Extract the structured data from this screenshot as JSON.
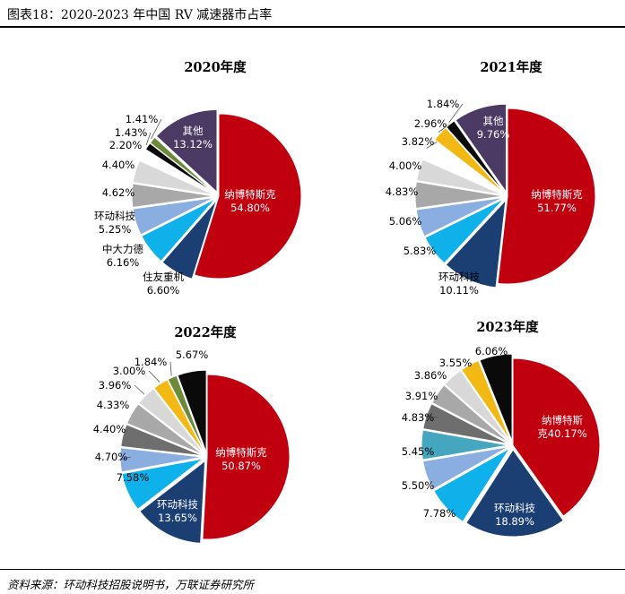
{
  "header": {
    "figure_title": "图表18：2020-2023 年中国  RV  减速器市占率"
  },
  "footer": {
    "source": "资料来源：环动科技招股说明书，万联证券研究所"
  },
  "colors": {
    "red": "#c1000f",
    "navy": "#1b3f73",
    "cyan": "#0fb1ea",
    "lightblue": "#8aaee0",
    "grey": "#a8a8a8",
    "darkgrey": "#6e6e6e",
    "lightgrey": "#d8d8d8",
    "black": "#0a0a0a",
    "green": "#6b8b3a",
    "yellow": "#f2b915",
    "purple": "#4b3a63",
    "teal": "#45a6c0"
  },
  "chart_data": [
    {
      "type": "pie",
      "title": "2020年度",
      "slices": [
        {
          "label": "纳博特斯克",
          "value": 54.8,
          "value_text": "54.80%",
          "color": "#c1000f"
        },
        {
          "label": "住友重机",
          "value": 6.6,
          "value_text": "6.60%",
          "color": "#1b3f73"
        },
        {
          "label": "中大力德",
          "value": 6.16,
          "value_text": "6.16%",
          "color": "#0fb1ea"
        },
        {
          "label": "环动科技",
          "value": 5.25,
          "value_text": "5.25%",
          "color": "#8aaee0"
        },
        {
          "label": "",
          "value": 4.62,
          "value_text": "4.62%",
          "color": "#a8a8a8"
        },
        {
          "label": "",
          "value": 4.4,
          "value_text": "4.40%",
          "color": "#d8d8d8"
        },
        {
          "label": "",
          "value": 2.2,
          "value_text": "2.20%",
          "color": "#ffffff"
        },
        {
          "label": "",
          "value": 1.43,
          "value_text": "1.43%",
          "color": "#0a0a0a"
        },
        {
          "label": "",
          "value": 1.41,
          "value_text": "1.41%",
          "color": "#6b8b3a"
        },
        {
          "label": "其他",
          "value": 13.12,
          "value_text": "13.12%",
          "color": "#4b3a63"
        }
      ]
    },
    {
      "type": "pie",
      "title": "2021年度",
      "slices": [
        {
          "label": "纳博特斯克",
          "value": 51.77,
          "value_text": "51.77%",
          "color": "#c1000f"
        },
        {
          "label": "环动科技",
          "value": 10.11,
          "value_text": "10.11%",
          "color": "#1b3f73"
        },
        {
          "label": "",
          "value": 5.83,
          "value_text": "5.83%",
          "color": "#0fb1ea"
        },
        {
          "label": "",
          "value": 5.06,
          "value_text": "5.06%",
          "color": "#8aaee0"
        },
        {
          "label": "",
          "value": 4.83,
          "value_text": "4.83%",
          "color": "#a8a8a8"
        },
        {
          "label": "",
          "value": 4.0,
          "value_text": "4.00%",
          "color": "#d8d8d8"
        },
        {
          "label": "",
          "value": 3.82,
          "value_text": "3.82%",
          "color": "#ffffff"
        },
        {
          "label": "",
          "value": 2.96,
          "value_text": "2.96%",
          "color": "#f2b915"
        },
        {
          "label": "",
          "value": 1.84,
          "value_text": "1.84%",
          "color": "#0a0a0a"
        },
        {
          "label": "其他",
          "value": 9.76,
          "value_text": "9.76%",
          "color": "#4b3a63"
        }
      ]
    },
    {
      "type": "pie",
      "title": "2022年度",
      "slices": [
        {
          "label": "纳博特斯克",
          "value": 50.87,
          "value_text": "50.87%",
          "color": "#c1000f"
        },
        {
          "label": "环动科技",
          "value": 13.65,
          "value_text": "13.65%",
          "color": "#1b3f73"
        },
        {
          "label": "",
          "value": 7.58,
          "value_text": "7.58%",
          "color": "#0fb1ea"
        },
        {
          "label": "",
          "value": 4.7,
          "value_text": "4.70%",
          "color": "#8aaee0"
        },
        {
          "label": "",
          "value": 4.4,
          "value_text": "4.40%",
          "color": "#6e6e6e"
        },
        {
          "label": "",
          "value": 4.33,
          "value_text": "4.33%",
          "color": "#a8a8a8"
        },
        {
          "label": "",
          "value": 3.96,
          "value_text": "3.96%",
          "color": "#d8d8d8"
        },
        {
          "label": "",
          "value": 3.0,
          "value_text": "3.00%",
          "color": "#f2b915"
        },
        {
          "label": "",
          "value": 1.84,
          "value_text": "1.84%",
          "color": "#6b8b3a"
        },
        {
          "label": "",
          "value": 5.67,
          "value_text": "5.67%",
          "color": "#0a0a0a"
        }
      ]
    },
    {
      "type": "pie",
      "title": "2023年度",
      "slices": [
        {
          "label": "纳博特斯\n克",
          "value": 40.17,
          "value_text": "40.17%",
          "color": "#c1000f"
        },
        {
          "label": "环动科技",
          "value": 18.89,
          "value_text": "18.89%",
          "color": "#1b3f73"
        },
        {
          "label": "",
          "value": 7.78,
          "value_text": "7.78%",
          "color": "#0fb1ea"
        },
        {
          "label": "",
          "value": 5.5,
          "value_text": "5.50%",
          "color": "#8aaee0"
        },
        {
          "label": "",
          "value": 5.45,
          "value_text": "5.45%",
          "color": "#45a6c0"
        },
        {
          "label": "",
          "value": 4.83,
          "value_text": "4.83%",
          "color": "#6e6e6e"
        },
        {
          "label": "",
          "value": 3.91,
          "value_text": "3.91%",
          "color": "#a8a8a8"
        },
        {
          "label": "",
          "value": 3.86,
          "value_text": "3.86%",
          "color": "#d8d8d8"
        },
        {
          "label": "",
          "value": 3.55,
          "value_text": "3.55%",
          "color": "#f2b915"
        },
        {
          "label": "",
          "value": 6.06,
          "value_text": "6.06%",
          "color": "#0a0a0a"
        }
      ]
    }
  ]
}
